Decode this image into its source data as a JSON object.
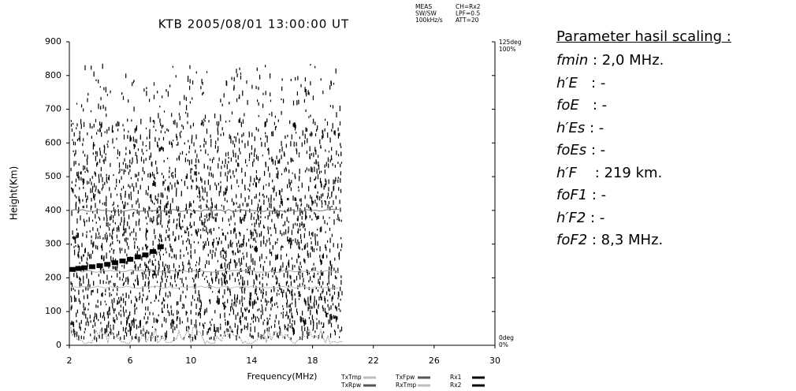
{
  "chart_data": {
    "type": "scatter",
    "title": "KTB 2005/08/01 13:00:00 UT",
    "info_left": [
      "MEAS",
      "SW/SW",
      "100kHz/s"
    ],
    "info_right": [
      "CH=Rx2",
      "LPF=0.5",
      "ATT=20"
    ],
    "right_top": [
      "125deg",
      "100%"
    ],
    "right_bottom": [
      "0deg",
      "0%"
    ],
    "x_label": "Frequency(MHz)",
    "y_label": "Height(Km)",
    "xlim": [
      2,
      30
    ],
    "xticks": [
      2,
      6,
      10,
      14,
      18,
      22,
      26,
      30
    ],
    "ylim": [
      0,
      900
    ],
    "yticks": [
      0,
      100,
      200,
      300,
      400,
      500,
      600,
      700,
      800,
      900
    ],
    "x": [
      2.2,
      2.6,
      3.0,
      3.5,
      4.0,
      4.5,
      5.0,
      5.5,
      6.0,
      6.5,
      7.0,
      7.5,
      8.0
    ],
    "values": [
      225,
      228,
      230,
      233,
      236,
      240,
      245,
      250,
      255,
      262,
      268,
      278,
      292
    ],
    "color": "#000000",
    "legend": [
      {
        "name": "TxTmp",
        "color": "#bdbdbd"
      },
      {
        "name": "TxFpw",
        "color": "#555555"
      },
      {
        "name": "Rx1",
        "color": "#000000"
      },
      {
        "name": "TxRpw",
        "color": "#555555"
      },
      {
        "name": "RxTmp",
        "color": "#bdbdbd"
      },
      {
        "name": "Rx2",
        "color": "#000000"
      }
    ]
  },
  "panel": {
    "title": "Parameter hasil scaling :",
    "rows": [
      {
        "name": "fmin",
        "value": " : 2,0 MHz."
      },
      {
        "name": "h′E",
        "value": "   : -"
      },
      {
        "name": "foE",
        "value": "   : -"
      },
      {
        "name": "h′Es",
        "value": " : -"
      },
      {
        "name": "foEs",
        "value": " : -"
      },
      {
        "name": "h′F",
        "value": "    : 219 km."
      },
      {
        "name": "foF1",
        "value": " : -"
      },
      {
        "name": "h′F2",
        "value": " : -"
      },
      {
        "name": "foF2",
        "value": " : 8,3 MHz."
      }
    ]
  }
}
